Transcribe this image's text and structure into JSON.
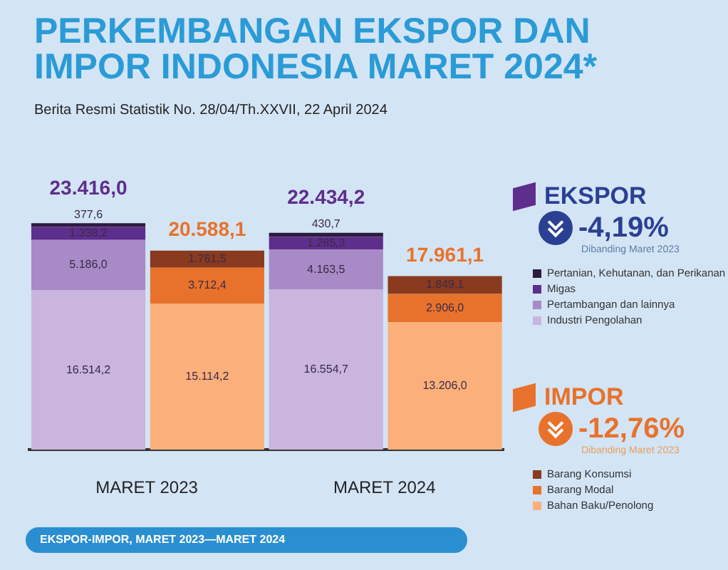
{
  "chart_data": {
    "type": "bar",
    "stacked": true,
    "title": "PERKEMBANGAN EKSPOR DAN IMPOR INDONESIA MARET 2024*",
    "subtitle": "Berita Resmi Statistik No. 28/04/Th.XXVII, 22 April 2024",
    "categories": [
      "MARET 2023",
      null,
      "MARET 2024",
      null
    ],
    "series": [
      {
        "name": "Industri Pengolahan",
        "color": "#c9b5dd",
        "values": [
          16514.2,
          null,
          16554.7,
          null
        ],
        "value_labels": [
          "16.514,2",
          null,
          "16.554,7",
          null
        ]
      },
      {
        "name": "Pertambangan dan lainnya",
        "color": "#a88bc6",
        "values": [
          5186.0,
          null,
          4163.5,
          null
        ],
        "value_labels": [
          "5.186,0",
          null,
          "4.163,5",
          null
        ]
      },
      {
        "name": "Migas",
        "color": "#5e2e8c",
        "values": [
          1338.2,
          null,
          1285.3,
          null
        ],
        "value_labels": [
          "1.338,2",
          null,
          "1.285,3",
          null
        ]
      },
      {
        "name": "Pertanian, Kehutanan, dan Perikanan",
        "color": "#2e1b3f",
        "values": [
          377.6,
          null,
          430.7,
          null
        ],
        "value_labels": [
          "377,6",
          null,
          "430,7",
          null
        ]
      },
      {
        "name": "Bahan Baku/Penolong",
        "color": "#fbb07c",
        "values": [
          null,
          15114.2,
          null,
          13206.0
        ],
        "value_labels": [
          null,
          "15.114,2",
          null,
          "13.206,0"
        ]
      },
      {
        "name": "Barang Modal",
        "color": "#e8722b",
        "values": [
          null,
          3712.4,
          null,
          2906.0
        ],
        "value_labels": [
          null,
          "3.712,4",
          null,
          "2.906,0"
        ]
      },
      {
        "name": "Barang Konsumsi",
        "color": "#8a3a1e",
        "values": [
          null,
          1761.5,
          null,
          1849.1
        ],
        "value_labels": [
          null,
          "1.761,5",
          null,
          "1.849,1"
        ]
      }
    ],
    "totals": [
      "23.416,0",
      "20.588,1",
      "22.434,2",
      "17.961,1"
    ],
    "tick_labels": "x",
    "grid": false,
    "legend": "right",
    "annotations": [
      "EKSPOR",
      "-4,19%",
      "Dibanding Maret 2023",
      "IMPOR",
      "-12,76%",
      "Dibanding Maret 2023",
      "EKSPOR-IMPOR, MARET 2023—MARET 2024"
    ]
  }
}
